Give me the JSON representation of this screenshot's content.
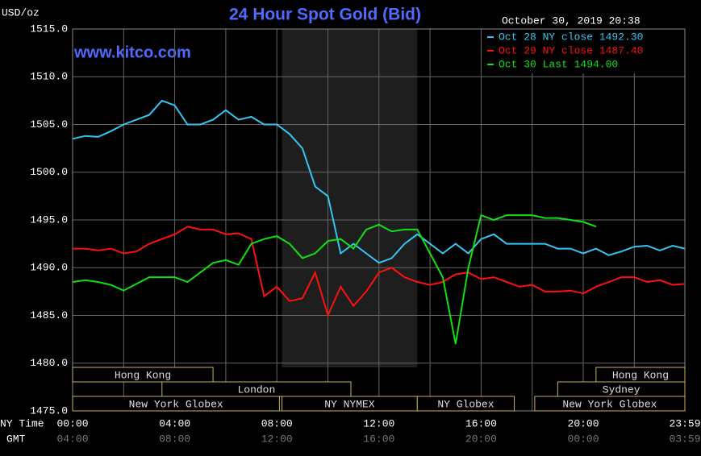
{
  "chart_data": {
    "type": "line",
    "title": "24 Hour Spot Gold (Bid)",
    "ylabel": "USD/oz",
    "watermark": "www.kitco.com",
    "timestamp": "October 30, 2019 20:38",
    "xlabel": "NY Time",
    "x2label": "GMT",
    "x": [
      0,
      0.5,
      1,
      1.5,
      2,
      2.5,
      3,
      3.5,
      4,
      4.5,
      5,
      5.5,
      6,
      6.5,
      7,
      7.5,
      8,
      8.5,
      9,
      9.5,
      10,
      10.5,
      11,
      11.5,
      12,
      12.5,
      13,
      13.5,
      14,
      14.5,
      15,
      15.5,
      16,
      16.5,
      17,
      17.5,
      18,
      18.5,
      19,
      19.5,
      20,
      20.5,
      21,
      21.5,
      22,
      22.5,
      23,
      23.5,
      23.98
    ],
    "series": [
      {
        "name": "Oct 28 NY close 1492.30",
        "color": "#33c6f2",
        "values": [
          1503.5,
          1503.8,
          1503.7,
          1504.3,
          1505.0,
          1505.5,
          1506.0,
          1507.5,
          1507.0,
          1505,
          1505,
          1505.5,
          1506.5,
          1505.5,
          1505.8,
          1505,
          1505,
          1504,
          1502.5,
          1498.5,
          1497.5,
          1491.5,
          1492.5,
          1491.5,
          1490.5,
          1491,
          1492.5,
          1493.5,
          1492.5,
          1491.5,
          1492.5,
          1491.5,
          1493,
          1493.5,
          1492.5,
          1492.5,
          1492.5,
          1492.5,
          1492,
          1492,
          1491.5,
          1492,
          1491.3,
          1491.7,
          1492.2,
          1492.3,
          1491.8,
          1492.3,
          1492.0
        ]
      },
      {
        "name": "Oct 29 NY close 1487.40",
        "color": "#ff1010",
        "values": [
          1492,
          1492,
          1491.8,
          1492,
          1491.5,
          1491.7,
          1492.5,
          1493,
          1493.5,
          1494.3,
          1494,
          1494,
          1493.5,
          1493.6,
          1493,
          1487,
          1488,
          1486.5,
          1486.8,
          1489.5,
          1485,
          1488,
          1486,
          1487.5,
          1489.5,
          1490,
          1489,
          1488.5,
          1488.2,
          1488.5,
          1489.3,
          1489.5,
          1488.8,
          1489,
          1488.5,
          1488,
          1488.2,
          1487.5,
          1487.5,
          1487.6,
          1487.3,
          1488,
          1488.5,
          1489,
          1489,
          1488.5,
          1488.7,
          1488.2,
          1488.3
        ]
      },
      {
        "name": "Oct 30 Last 1494.00",
        "color": "#10e010",
        "values": [
          1488.5,
          1488.7,
          1488.5,
          1488.2,
          1487.6,
          1488.3,
          1489,
          1489,
          1489,
          1488.5,
          1489.5,
          1490.5,
          1490.8,
          1490.3,
          1492.5,
          1493,
          1493.3,
          1492.5,
          1491,
          1491.5,
          1492.8,
          1493,
          1492,
          1494,
          1494.5,
          1493.8,
          1494,
          1494,
          1491.5,
          1489,
          1482,
          1490,
          1495.5,
          1495,
          1495.5,
          1495.5,
          1495.5,
          1495.2,
          1495.2,
          1495,
          1494.8,
          1494.3,
          null,
          null,
          null,
          null,
          null,
          null,
          null
        ]
      }
    ],
    "xlim": [
      0,
      23.98
    ],
    "ylim": [
      1475,
      1515
    ],
    "yticks": [
      {
        "value": 1475,
        "label": "1475.0"
      },
      {
        "value": 1480,
        "label": "1480.0"
      },
      {
        "value": 1485,
        "label": "1485.0"
      },
      {
        "value": 1490,
        "label": "1490.0"
      },
      {
        "value": 1495,
        "label": "1495.0"
      },
      {
        "value": 1500,
        "label": "1500.0"
      },
      {
        "value": 1505,
        "label": "1505.0"
      },
      {
        "value": 1510,
        "label": "1510.0"
      },
      {
        "value": 1515,
        "label": "1515.0"
      }
    ],
    "xticks": [
      {
        "value": 0,
        "label": "00:00"
      },
      {
        "value": 4,
        "label": "04:00"
      },
      {
        "value": 8,
        "label": "08:00"
      },
      {
        "value": 12,
        "label": "12:00"
      },
      {
        "value": 16,
        "label": "16:00"
      },
      {
        "value": 20,
        "label": "20:00"
      },
      {
        "value": 23.98,
        "label": "23:59"
      }
    ],
    "x2ticks": [
      {
        "value": 0,
        "label": "04:00"
      },
      {
        "value": 4,
        "label": "08:00"
      },
      {
        "value": 8,
        "label": "12:00"
      },
      {
        "value": 12,
        "label": "16:00"
      },
      {
        "value": 16,
        "label": "20:00"
      },
      {
        "value": 20,
        "label": "00:00"
      },
      {
        "value": 23.98,
        "label": "03:59"
      }
    ],
    "xminorticks": [
      2,
      6,
      10,
      14,
      18,
      22
    ],
    "grid": true,
    "legend": "top-right",
    "session_rows": [
      [
        {
          "label": "Hong Kong",
          "start": 0,
          "end": 5.5
        },
        {
          "label": "Hong Kong",
          "start": 20.5,
          "end": 24
        }
      ],
      [
        {
          "label": "London",
          "start": 3.5,
          "end": 10.9
        },
        {
          "label": "Sydney",
          "start": 19,
          "end": 24
        }
      ],
      [
        {
          "label": "New York Globex",
          "start": 0,
          "end": 8.1
        },
        {
          "label": "NY NYMEX",
          "start": 8.2,
          "end": 13.5,
          "shade": true
        },
        {
          "label": "NY Globex",
          "start": 13.5,
          "end": 17.3
        },
        {
          "label": "New York Globex",
          "start": 18.1,
          "end": 24
        }
      ]
    ]
  }
}
